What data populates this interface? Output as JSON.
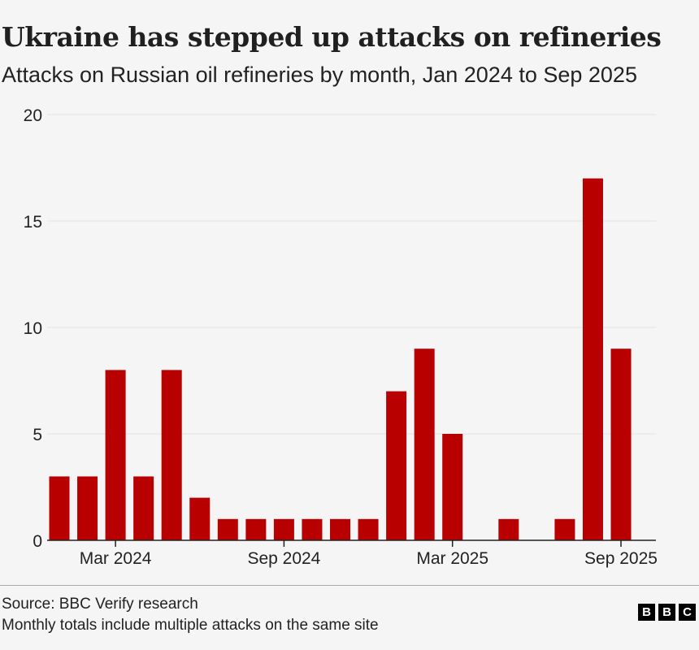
{
  "header": {
    "title": "Ukraine has stepped up attacks on refineries",
    "subtitle": "Attacks on Russian oil refineries by month, Jan 2024 to Sep 2025"
  },
  "footer": {
    "source": "Source: BBC Verify research",
    "note": "Monthly totals include multiple attacks on the same site",
    "logo_letters": [
      "B",
      "B",
      "C"
    ]
  },
  "colors": {
    "bar": "#b80000",
    "grid": "#e3e3e3",
    "axis": "#222222"
  },
  "chart_data": {
    "type": "bar",
    "title": "Ukraine has stepped up attacks on refineries",
    "subtitle": "Attacks on Russian oil refineries by month, Jan 2024 to Sep 2025",
    "xlabel": "",
    "ylabel": "",
    "ylim": [
      0,
      20
    ],
    "yticks": [
      0,
      5,
      10,
      15,
      20
    ],
    "grid": true,
    "categories": [
      "Jan 2024",
      "Feb 2024",
      "Mar 2024",
      "Apr 2024",
      "May 2024",
      "Jun 2024",
      "Jul 2024",
      "Aug 2024",
      "Sep 2024",
      "Oct 2024",
      "Nov 2024",
      "Dec 2024",
      "Jan 2025",
      "Feb 2025",
      "Mar 2025",
      "Apr 2025",
      "May 2025",
      "Jun 2025",
      "Jul 2025",
      "Aug 2025",
      "Sep 2025"
    ],
    "values": [
      3,
      3,
      8,
      3,
      8,
      2,
      1,
      1,
      1,
      1,
      1,
      1,
      7,
      9,
      5,
      0,
      1,
      0,
      1,
      17,
      9
    ],
    "xtick_labels": [
      {
        "label": "Mar 2024",
        "category": "Mar 2024"
      },
      {
        "label": "Sep 2024",
        "category": "Sep 2024"
      },
      {
        "label": "Mar 2025",
        "category": "Mar 2025"
      },
      {
        "label": "Sep 2025",
        "category": "Sep 2025"
      }
    ]
  }
}
